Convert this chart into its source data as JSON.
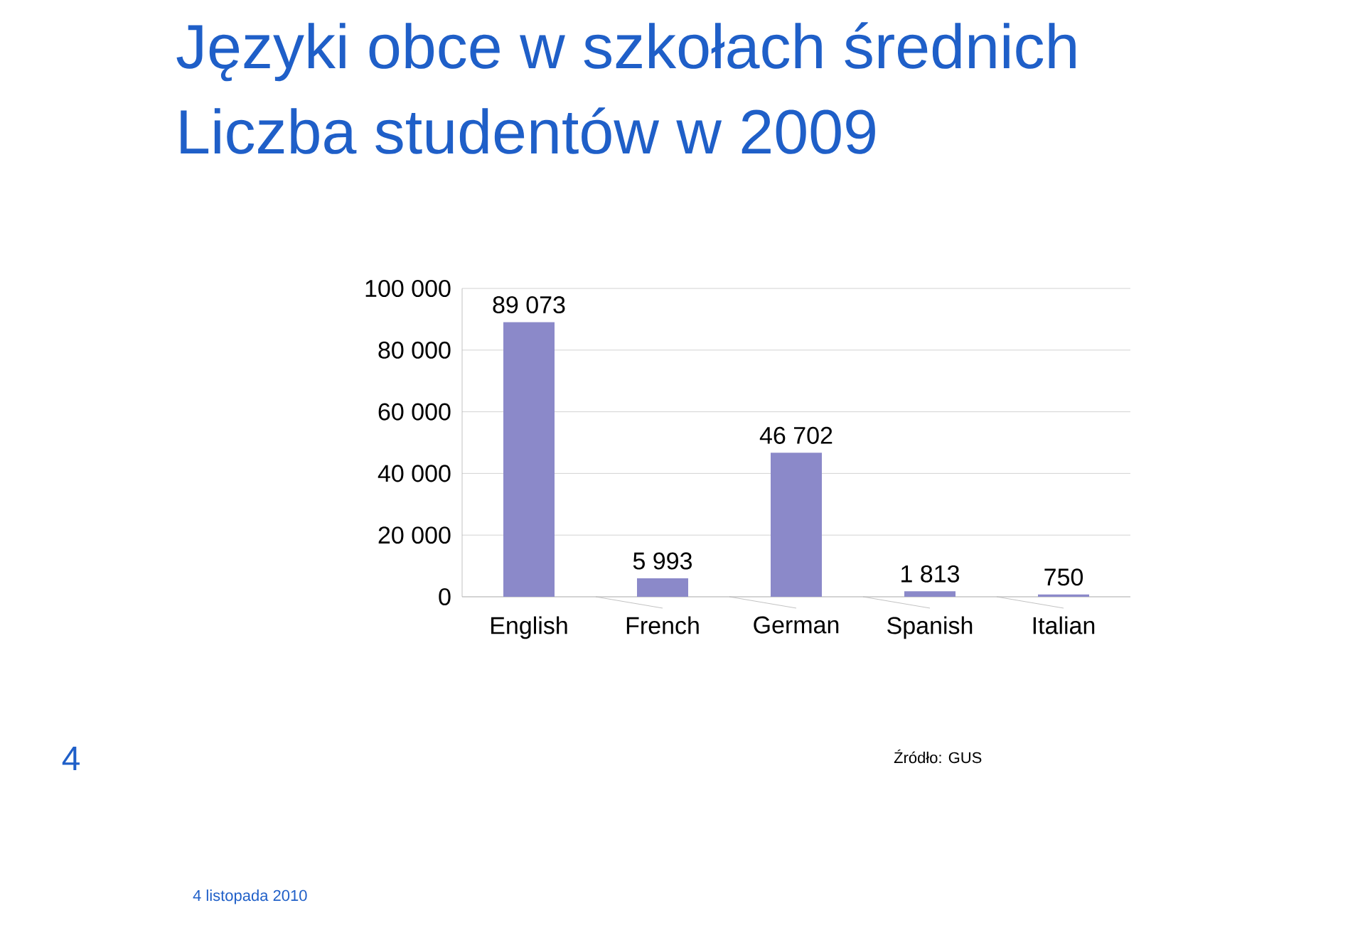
{
  "chart_data": {
    "type": "bar",
    "title": "Języki obce w szkołach średnich",
    "subtitle": "Liczba studentów w 2009",
    "categories": [
      "English",
      "French",
      "German",
      "Spanish",
      "Italian"
    ],
    "values": [
      89073,
      5993,
      46702,
      1813,
      750
    ],
    "value_labels": [
      "89 073",
      "5 993",
      "46 702",
      "1 813",
      "750"
    ],
    "color": "#8b89c9",
    "ylim": [
      0,
      100000
    ],
    "yticks": [
      {
        "value": 0,
        "label": "0"
      },
      {
        "value": 20000,
        "label": "20 000"
      },
      {
        "value": 40000,
        "label": "40 000"
      },
      {
        "value": 60000,
        "label": "60 000"
      },
      {
        "value": 80000,
        "label": "80 000"
      },
      {
        "value": 100000,
        "label": "100 000"
      }
    ],
    "grid": "y",
    "annotations": [
      "Źródło: GUS",
      "4",
      "4 listopada 2010"
    ]
  }
}
